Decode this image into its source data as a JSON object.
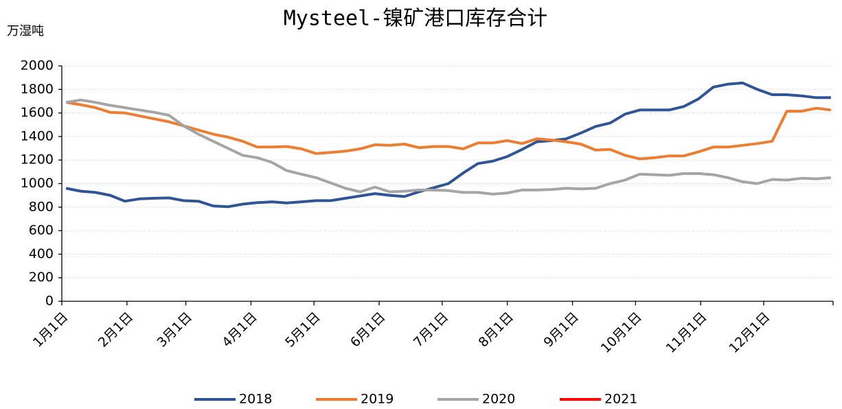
{
  "chart_data": {
    "type": "line",
    "title": "Mysteel-镍矿港口库存合计",
    "y_label": "万湿吨",
    "x": [
      2,
      9,
      16,
      23,
      30,
      37,
      44,
      51,
      58,
      65,
      72,
      79,
      86,
      93,
      100,
      107,
      114,
      121,
      128,
      135,
      142,
      149,
      156,
      163,
      170,
      177,
      184,
      191,
      198,
      205,
      212,
      219,
      226,
      233,
      240,
      247,
      254,
      261,
      268,
      275,
      282,
      289,
      296,
      303,
      310,
      317,
      324,
      331,
      338,
      345,
      352,
      359,
      366
    ],
    "xlim": [
      0,
      367
    ],
    "xticks": [
      {
        "value": 0,
        "label": "1月1日"
      },
      {
        "value": 31,
        "label": "2月1日"
      },
      {
        "value": 59,
        "label": "3月1日"
      },
      {
        "value": 90,
        "label": "4月1日"
      },
      {
        "value": 120,
        "label": "5月1日"
      },
      {
        "value": 151,
        "label": "6月1日"
      },
      {
        "value": 181,
        "label": "7月1日"
      },
      {
        "value": 212,
        "label": "8月1日"
      },
      {
        "value": 243,
        "label": "9月1日"
      },
      {
        "value": 273,
        "label": "10月1日"
      },
      {
        "value": 304,
        "label": "11月1日"
      },
      {
        "value": 334,
        "label": "12月1日"
      }
    ],
    "ylim": [
      0,
      2000
    ],
    "yticks": [
      0,
      200,
      400,
      600,
      800,
      1000,
      1200,
      1400,
      1600,
      1800,
      2000
    ],
    "grid": true,
    "legend": "bottom",
    "series": [
      {
        "name": "2018",
        "color": "#2f5597",
        "values": [
          960,
          935,
          925,
          900,
          850,
          870,
          875,
          878,
          855,
          850,
          810,
          803,
          825,
          838,
          845,
          835,
          845,
          855,
          855,
          875,
          895,
          915,
          900,
          890,
          930,
          965,
          1000,
          1090,
          1170,
          1190,
          1230,
          1290,
          1355,
          1365,
          1380,
          1430,
          1485,
          1515,
          1590,
          1625,
          1625,
          1625,
          1655,
          1720,
          1820,
          1845,
          1855,
          1800,
          1755,
          1755,
          1745,
          1730,
          1730
        ]
      },
      {
        "name": "2019",
        "color": "#ed7d31",
        "values": [
          1690,
          1670,
          1645,
          1605,
          1600,
          1575,
          1550,
          1525,
          1490,
          1455,
          1420,
          1395,
          1360,
          1310,
          1310,
          1315,
          1295,
          1255,
          1265,
          1275,
          1295,
          1330,
          1325,
          1335,
          1305,
          1315,
          1315,
          1295,
          1345,
          1345,
          1365,
          1340,
          1380,
          1370,
          1355,
          1335,
          1285,
          1290,
          1240,
          1210,
          1220,
          1235,
          1235,
          1270,
          1310,
          1310,
          1325,
          1340,
          1360,
          1615,
          1615,
          1640,
          1625
        ]
      },
      {
        "name": "2020",
        "color": "#a5a5a5",
        "values": [
          1690,
          1710,
          1690,
          1665,
          1645,
          1625,
          1605,
          1580,
          1490,
          1420,
          1360,
          1300,
          1240,
          1220,
          1180,
          1110,
          1080,
          1050,
          1005,
          960,
          930,
          970,
          930,
          935,
          945,
          945,
          940,
          925,
          925,
          910,
          920,
          945,
          945,
          950,
          960,
          955,
          960,
          1000,
          1030,
          1080,
          1075,
          1070,
          1085,
          1085,
          1075,
          1050,
          1015,
          1000,
          1035,
          1030,
          1045,
          1040,
          1050
        ]
      },
      {
        "name": "2021",
        "color": "#ff0000",
        "values": [
          null,
          null,
          null,
          null,
          null,
          null,
          null,
          null,
          null,
          null,
          null,
          null,
          null,
          null,
          null,
          null,
          null,
          null,
          null,
          null,
          null,
          null,
          null,
          null,
          null,
          null,
          null,
          null,
          null,
          null,
          null,
          null,
          null,
          null,
          null,
          null,
          null,
          null,
          null,
          null,
          null,
          null,
          null,
          null,
          null,
          null,
          null,
          null,
          null,
          null,
          null,
          null,
          null
        ]
      }
    ]
  }
}
